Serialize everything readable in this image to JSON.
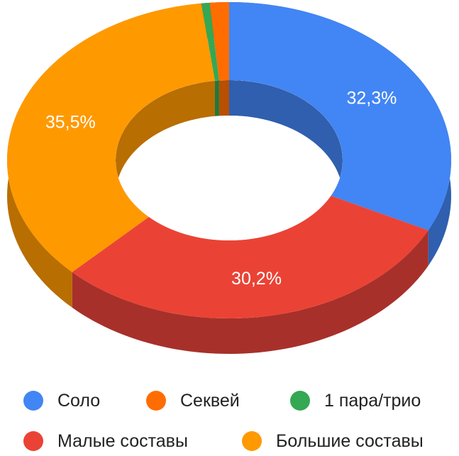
{
  "chart_data": {
    "type": "pie",
    "variant": "3d-donut",
    "title": "",
    "slices": [
      {
        "label": "Соло",
        "value": 32.3,
        "value_label": "32,3%",
        "color": "#4285f4",
        "side_color": "#2f5fae"
      },
      {
        "label": "Малые составы",
        "value": 30.2,
        "value_label": "30,2%",
        "color": "#ea4335",
        "side_color": "#a8302a"
      },
      {
        "label": "Большие составы",
        "value": 35.5,
        "value_label": "35,5%",
        "color": "#ff9900",
        "side_color": "#b86e00"
      },
      {
        "label": "1 пара/трио",
        "value": 0.6,
        "value_label": "",
        "color": "#34a853",
        "side_color": "#23773a"
      },
      {
        "label": "Секвей",
        "value": 1.4,
        "value_label": "",
        "color": "#ff6d01",
        "side_color": "#b84f01"
      }
    ],
    "legend_position": "bottom",
    "legend_order": [
      "Соло",
      "Секвей",
      "1 пара/трио",
      "Малые составы",
      "Большие составы"
    ]
  }
}
